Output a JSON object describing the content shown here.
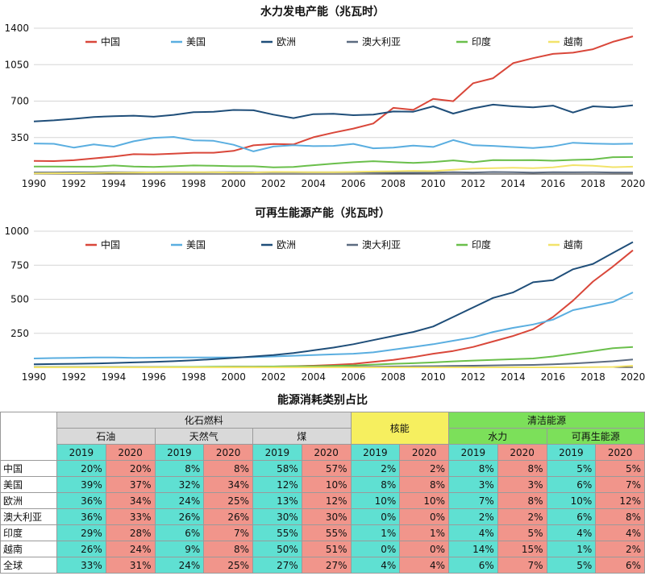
{
  "chart_data": [
    {
      "type": "line",
      "title": "水力发电产能（兆瓦时）",
      "x": [
        1990,
        1991,
        1992,
        1993,
        1994,
        1995,
        1996,
        1997,
        1998,
        1999,
        2000,
        2001,
        2002,
        2003,
        2004,
        2005,
        2006,
        2007,
        2008,
        2009,
        2010,
        2011,
        2012,
        2013,
        2014,
        2015,
        2016,
        2017,
        2018,
        2019,
        2020
      ],
      "xticks": [
        1990,
        1992,
        1994,
        1996,
        1998,
        2000,
        2002,
        2004,
        2006,
        2008,
        2010,
        2012,
        2014,
        2016,
        2018,
        2020
      ],
      "yticks": [
        350,
        700,
        1050,
        1400
      ],
      "ylim": [
        0,
        1400
      ],
      "legend_position": "top",
      "series": [
        {
          "name": "中国",
          "color": "#d9473a",
          "values": [
            126,
            124,
            132,
            150,
            167,
            190,
            188,
            195,
            204,
            204,
            222,
            275,
            288,
            284,
            353,
            397,
            436,
            485,
            635,
            616,
            722,
            699,
            872,
            920,
            1064,
            1112,
            1153,
            1165,
            1198,
            1269,
            1322
          ]
        },
        {
          "name": "美国",
          "color": "#5aaee0",
          "values": [
            293,
            290,
            254,
            284,
            263,
            314,
            347,
            356,
            323,
            319,
            281,
            217,
            264,
            276,
            268,
            270,
            289,
            247,
            254,
            273,
            260,
            326,
            276,
            270,
            259,
            249,
            265,
            300,
            292,
            288,
            291
          ]
        },
        {
          "name": "欧洲",
          "color": "#1f4e79",
          "values": [
            505,
            515,
            530,
            548,
            555,
            560,
            550,
            568,
            594,
            597,
            615,
            612,
            570,
            537,
            575,
            578,
            565,
            570,
            600,
            598,
            650,
            580,
            630,
            666,
            650,
            640,
            657,
            590,
            650,
            640,
            660
          ]
        },
        {
          "name": "澳大利亚",
          "color": "#5c6b80",
          "values": [
            15,
            15,
            16,
            16,
            17,
            16,
            16,
            17,
            16,
            17,
            17,
            16,
            16,
            16,
            16,
            16,
            16,
            15,
            12,
            12,
            14,
            18,
            15,
            19,
            18,
            14,
            18,
            16,
            17,
            15,
            15
          ]
        },
        {
          "name": "印度",
          "color": "#6abf4b",
          "values": [
            72,
            72,
            70,
            70,
            82,
            72,
            68,
            74,
            82,
            80,
            74,
            74,
            64,
            68,
            84,
            100,
            113,
            123,
            114,
            107,
            115,
            131,
            113,
            134,
            132,
            133,
            128,
            135,
            140,
            162,
            163
          ]
        },
        {
          "name": "越南",
          "color": "#f2e36a",
          "values": [
            6,
            7,
            8,
            9,
            12,
            14,
            16,
            17,
            18,
            17,
            14,
            15,
            20,
            19,
            17,
            17,
            20,
            24,
            26,
            30,
            28,
            41,
            52,
            56,
            60,
            56,
            64,
            85,
            80,
            66,
            70
          ]
        }
      ]
    },
    {
      "type": "line",
      "title": "可再生能源产能（兆瓦时）",
      "x": [
        1990,
        1991,
        1992,
        1993,
        1994,
        1995,
        1996,
        1997,
        1998,
        1999,
        2000,
        2001,
        2002,
        2003,
        2004,
        2005,
        2006,
        2007,
        2008,
        2009,
        2010,
        2011,
        2012,
        2013,
        2014,
        2015,
        2016,
        2017,
        2018,
        2019,
        2020
      ],
      "xticks": [
        1990,
        1992,
        1994,
        1996,
        1998,
        2000,
        2002,
        2004,
        2006,
        2008,
        2010,
        2012,
        2014,
        2016,
        2018,
        2020
      ],
      "yticks": [
        250,
        500,
        750,
        1000
      ],
      "ylim": [
        0,
        1000
      ],
      "legend_position": "top",
      "series": [
        {
          "name": "中国",
          "color": "#d9473a",
          "values": [
            1,
            1,
            1,
            1,
            1,
            1,
            2,
            2,
            2,
            3,
            4,
            5,
            6,
            8,
            12,
            18,
            25,
            40,
            55,
            75,
            100,
            120,
            150,
            190,
            230,
            280,
            370,
            490,
            630,
            740,
            860
          ]
        },
        {
          "name": "美国",
          "color": "#5aaee0",
          "values": [
            65,
            68,
            70,
            72,
            72,
            70,
            71,
            72,
            72,
            73,
            73,
            75,
            80,
            85,
            90,
            95,
            100,
            110,
            130,
            150,
            170,
            195,
            220,
            260,
            290,
            315,
            350,
            420,
            450,
            480,
            550
          ]
        },
        {
          "name": "欧洲",
          "color": "#1f4e79",
          "values": [
            22,
            24,
            26,
            28,
            32,
            36,
            40,
            45,
            52,
            60,
            70,
            80,
            90,
            105,
            125,
            145,
            170,
            200,
            230,
            260,
            300,
            370,
            440,
            510,
            550,
            625,
            640,
            720,
            760,
            840,
            920
          ]
        },
        {
          "name": "澳大利亚",
          "color": "#5c6b80",
          "values": [
            2,
            2,
            2,
            2,
            2,
            2,
            2,
            2,
            2,
            3,
            3,
            3,
            3,
            3,
            4,
            4,
            5,
            5,
            6,
            7,
            8,
            10,
            12,
            14,
            16,
            18,
            22,
            28,
            36,
            45,
            58
          ]
        },
        {
          "name": "印度",
          "color": "#6abf4b",
          "values": [
            1,
            1,
            1,
            1,
            2,
            2,
            2,
            3,
            3,
            4,
            4,
            5,
            6,
            7,
            8,
            10,
            14,
            20,
            26,
            30,
            36,
            44,
            50,
            55,
            60,
            65,
            80,
            100,
            120,
            140,
            150
          ]
        },
        {
          "name": "越南",
          "color": "#f2e36a",
          "values": [
            0,
            0,
            0,
            0,
            0,
            0,
            0,
            0,
            0,
            0,
            0,
            0,
            0,
            0,
            0,
            0,
            0,
            0,
            0,
            0,
            0,
            0,
            0,
            0,
            0,
            0,
            0,
            0,
            1,
            3,
            12
          ]
        }
      ]
    },
    {
      "type": "table",
      "title": "能源消耗类别占比",
      "groups": {
        "fossil": "化石燃料",
        "nuclear": "核能",
        "clean": "清洁能源"
      },
      "subgroups": {
        "oil": "石油",
        "gas": "天然气",
        "coal": "煤",
        "hydro": "水力",
        "renew": "可再生能源"
      },
      "years": [
        "2019",
        "2020"
      ],
      "rows": [
        {
          "region": "中国",
          "values": [
            "20%",
            "20%",
            "8%",
            "8%",
            "58%",
            "57%",
            "2%",
            "2%",
            "8%",
            "8%",
            "5%",
            "5%"
          ]
        },
        {
          "region": "美国",
          "values": [
            "39%",
            "37%",
            "32%",
            "34%",
            "12%",
            "10%",
            "8%",
            "8%",
            "3%",
            "3%",
            "6%",
            "7%"
          ]
        },
        {
          "region": "欧洲",
          "values": [
            "36%",
            "34%",
            "24%",
            "25%",
            "13%",
            "12%",
            "10%",
            "10%",
            "7%",
            "8%",
            "10%",
            "12%"
          ]
        },
        {
          "region": "澳大利亚",
          "values": [
            "36%",
            "33%",
            "26%",
            "26%",
            "30%",
            "30%",
            "0%",
            "0%",
            "2%",
            "2%",
            "6%",
            "8%"
          ]
        },
        {
          "region": "印度",
          "values": [
            "29%",
            "28%",
            "6%",
            "7%",
            "55%",
            "55%",
            "1%",
            "1%",
            "4%",
            "5%",
            "4%",
            "4%"
          ]
        },
        {
          "region": "越南",
          "values": [
            "26%",
            "24%",
            "9%",
            "8%",
            "50%",
            "51%",
            "0%",
            "0%",
            "14%",
            "15%",
            "1%",
            "2%"
          ]
        },
        {
          "region": "全球",
          "values": [
            "33%",
            "31%",
            "24%",
            "25%",
            "27%",
            "27%",
            "4%",
            "4%",
            "6%",
            "7%",
            "5%",
            "6%"
          ]
        }
      ]
    }
  ]
}
